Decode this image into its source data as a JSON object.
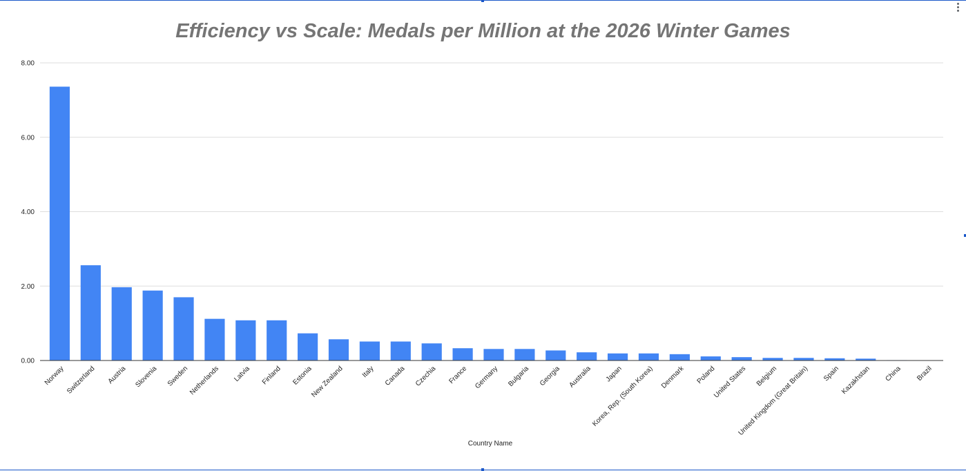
{
  "chart_data": {
    "type": "bar",
    "title": "Efficiency vs Scale: Medals per Million at the 2026 Winter Games",
    "xlabel": "Country Name",
    "ylabel": "",
    "ylim": [
      0,
      8
    ],
    "yticks": [
      "0.00",
      "2.00",
      "4.00",
      "6.00",
      "8.00"
    ],
    "grid": true,
    "bar_color": "#4285f4",
    "categories": [
      "Norway",
      "Switzerland",
      "Austria",
      "Slovenia",
      "Sweden",
      "Netherlands",
      "Latvia",
      "Finland",
      "Estonia",
      "New Zealand",
      "Italy",
      "Canada",
      "Czechia",
      "France",
      "Germany",
      "Bulgaria",
      "Georgia",
      "Australia",
      "Japan",
      "Korea, Rep. (South Korea)",
      "Denmark",
      "Poland",
      "United States",
      "Belgium",
      "United Kingdom (Great Britain)",
      "Spain",
      "Kazakhstan",
      "China",
      "Brazil"
    ],
    "values": [
      7.36,
      2.56,
      1.97,
      1.88,
      1.7,
      1.12,
      1.08,
      1.08,
      0.73,
      0.57,
      0.51,
      0.51,
      0.46,
      0.33,
      0.31,
      0.31,
      0.27,
      0.22,
      0.19,
      0.19,
      0.17,
      0.11,
      0.09,
      0.07,
      0.07,
      0.06,
      0.05,
      0.01,
      0.0
    ]
  }
}
